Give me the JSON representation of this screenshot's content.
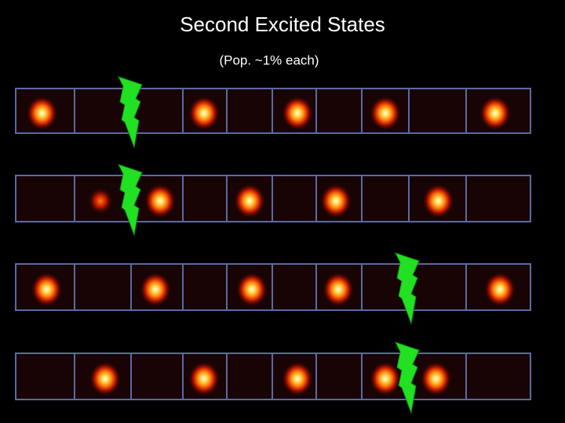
{
  "title": "Second Excited States",
  "subtitle": "(Pop. ~1% each)"
}
